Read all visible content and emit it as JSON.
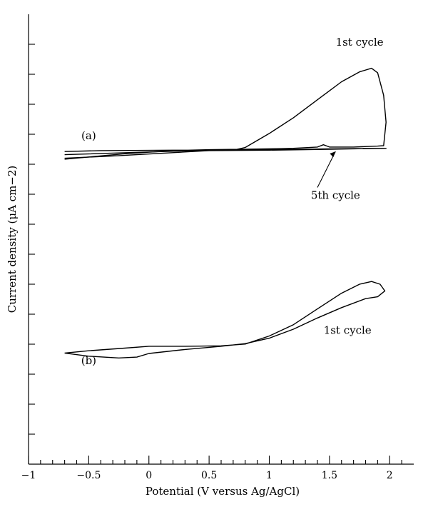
{
  "chart_data": {
    "type": "line",
    "xlabel": "Potential (V versus Ag/AgCl)",
    "ylabel": "Current density (μA cm−2)",
    "xlim": [
      -1,
      2.2
    ],
    "x_ticks": [
      "−1",
      "−0.5",
      "0",
      "0.5",
      "1",
      "1.5",
      "2"
    ],
    "x_tick_values": [
      -1,
      -0.5,
      0,
      0.5,
      1,
      1.5,
      2
    ],
    "panels": [
      {
        "label": "(a)",
        "zero_ref": "upper"
      },
      {
        "label": "(b)",
        "zero_ref": "lower"
      }
    ],
    "annotations": [
      {
        "text": "1st cycle",
        "panel": "(a)",
        "x": 1.75,
        "y": 0.93
      },
      {
        "text": "5th cycle",
        "panel": "(a)",
        "x": 1.55,
        "y": 0.59
      },
      {
        "text": "1st cycle",
        "panel": "(b)",
        "x": 1.65,
        "y": 0.29
      }
    ],
    "series": [
      {
        "panel": "(a)",
        "cycle": "1st",
        "x": [
          -0.7,
          -0.4,
          0.2,
          0.7,
          0.8,
          1.0,
          1.2,
          1.4,
          1.6,
          1.75,
          1.85,
          1.9,
          1.95,
          1.97,
          1.95,
          1.9,
          1.7,
          1.5,
          1.45,
          1.4,
          1.2,
          0.8,
          0.5,
          0.2,
          -0.2,
          -0.7
        ],
        "y": [
          0.695,
          0.697,
          0.698,
          0.698,
          0.704,
          0.735,
          0.77,
          0.81,
          0.85,
          0.872,
          0.88,
          0.87,
          0.82,
          0.76,
          0.708,
          0.707,
          0.705,
          0.705,
          0.71,
          0.705,
          0.702,
          0.7,
          0.699,
          0.697,
          0.69,
          0.678
        ]
      },
      {
        "panel": "(a)",
        "cycle": "5th",
        "x": [
          -0.7,
          0.0,
          0.5,
          1.0,
          1.5,
          1.97,
          1.5,
          1.0,
          0.5,
          -0.3,
          -0.7
        ],
        "y": [
          0.688,
          0.694,
          0.698,
          0.699,
          0.701,
          0.702,
          0.7,
          0.698,
          0.697,
          0.685,
          0.68
        ]
      },
      {
        "panel": "(b)",
        "cycle": "1st",
        "x": [
          -0.7,
          -0.5,
          -0.2,
          0.0,
          0.3,
          0.6,
          0.8,
          1.0,
          1.2,
          1.4,
          1.6,
          1.75,
          1.85,
          1.92,
          1.96,
          1.9,
          1.8,
          1.6,
          1.4,
          1.2,
          1.0,
          0.8,
          0.6,
          0.3,
          0.0,
          -0.1,
          -0.25,
          -0.5,
          -0.7
        ],
        "y": [
          0.247,
          0.252,
          0.258,
          0.262,
          0.262,
          0.263,
          0.267,
          0.285,
          0.31,
          0.345,
          0.38,
          0.4,
          0.406,
          0.4,
          0.385,
          0.372,
          0.368,
          0.348,
          0.325,
          0.3,
          0.28,
          0.268,
          0.262,
          0.255,
          0.246,
          0.238,
          0.236,
          0.24,
          0.247
        ]
      }
    ]
  }
}
